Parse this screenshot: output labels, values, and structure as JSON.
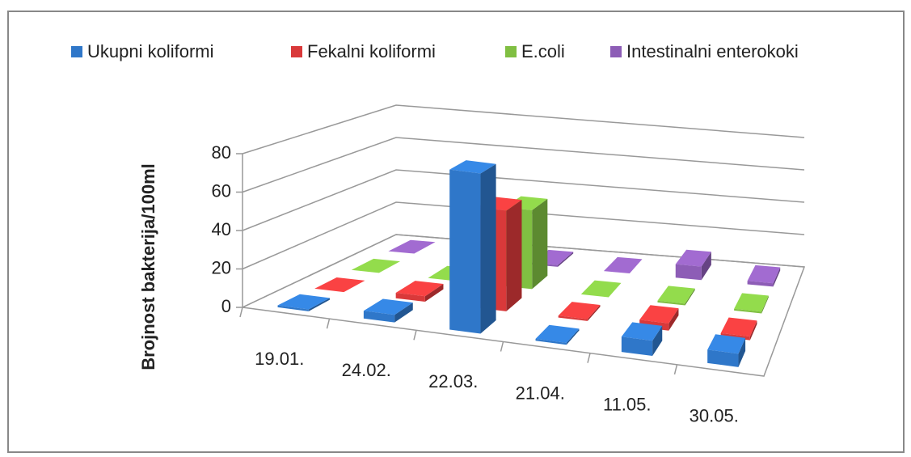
{
  "chart_data": {
    "type": "bar3d",
    "y_label": "Brojnost bakterija/100ml",
    "categories": [
      "19.01.",
      "24.02.",
      "22.03.",
      "21.04.",
      "11.05.",
      "30.05."
    ],
    "series": [
      {
        "name": "Ukupni koliformi",
        "color": "#2f77c9",
        "values": [
          1,
          4,
          84,
          1,
          8,
          7
        ]
      },
      {
        "name": "Fekalni koliformi",
        "color": "#d9393a",
        "values": [
          0,
          3,
          55,
          1,
          4,
          2
        ]
      },
      {
        "name": "E.coli",
        "color": "#80bf42",
        "values": [
          0,
          0,
          45,
          0,
          1,
          1
        ]
      },
      {
        "name": "Intestinalni enterokoki",
        "color": "#8d5db6",
        "values": [
          0,
          5,
          1,
          0,
          8,
          2
        ]
      }
    ],
    "ylim": [
      0,
      80
    ],
    "yticks": [
      0,
      20,
      40,
      60,
      80
    ],
    "grid": true,
    "legend": "top"
  }
}
